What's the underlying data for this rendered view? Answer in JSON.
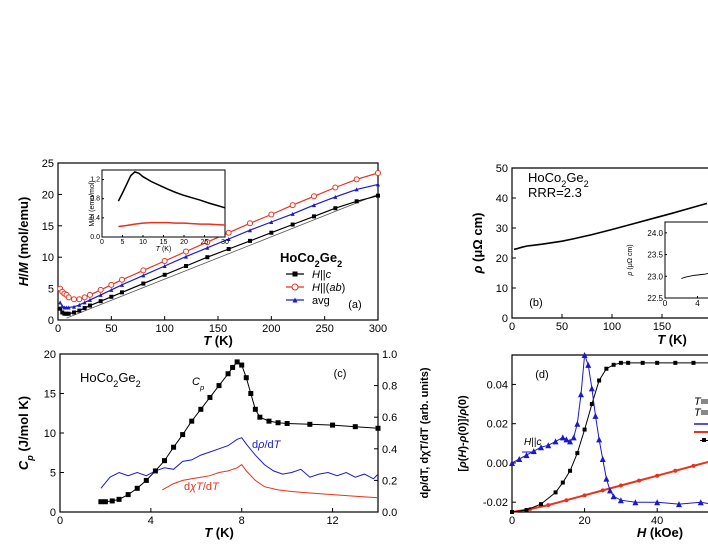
{
  "chart_data": [
    {
      "panel": "(a)",
      "type": "line",
      "compound": "HoCo2Ge2",
      "xlabel": "T (K)",
      "ylabel": "H/M (mol/emu)",
      "xlim": [
        0,
        300
      ],
      "ylim": [
        0,
        25
      ],
      "xticks": [
        "0",
        "50",
        "100",
        "150",
        "200",
        "250",
        "300"
      ],
      "yticks": [
        "0",
        "5",
        "10",
        "15",
        "20",
        "25"
      ],
      "legend_position": "lower-right",
      "series": [
        {
          "name": "H||c",
          "color": "#000000",
          "marker": "square-filled",
          "x": [
            2,
            4,
            6,
            8,
            10,
            15,
            20,
            25,
            30,
            40,
            50,
            60,
            80,
            100,
            120,
            140,
            160,
            180,
            200,
            220,
            240,
            260,
            280,
            300
          ],
          "y": [
            1.8,
            1.2,
            1.0,
            1.0,
            1.0,
            1.2,
            1.5,
            1.9,
            2.3,
            3.0,
            3.7,
            4.4,
            5.8,
            7.2,
            8.6,
            10.0,
            11.3,
            12.6,
            13.9,
            15.2,
            16.5,
            17.8,
            18.9,
            19.8
          ]
        },
        {
          "name": "H||(ab)",
          "color": "#e8321e",
          "marker": "circle-open",
          "x": [
            2,
            4,
            6,
            8,
            10,
            15,
            20,
            25,
            30,
            40,
            50,
            60,
            80,
            100,
            120,
            140,
            160,
            180,
            200,
            220,
            240,
            260,
            280,
            300
          ],
          "y": [
            5.0,
            4.5,
            4.2,
            4.0,
            3.6,
            3.3,
            3.3,
            3.6,
            4.0,
            4.8,
            5.6,
            6.4,
            7.9,
            9.4,
            10.9,
            12.4,
            13.9,
            15.4,
            16.8,
            18.3,
            19.7,
            21.1,
            22.4,
            23.4
          ]
        },
        {
          "name": "avg",
          "color": "#1a1acc",
          "marker": "triangle",
          "x": [
            2,
            4,
            6,
            8,
            10,
            15,
            20,
            25,
            30,
            40,
            50,
            60,
            80,
            100,
            120,
            140,
            160,
            180,
            200,
            220,
            240,
            260,
            280,
            300
          ],
          "y": [
            2.8,
            2.2,
            2.0,
            2.0,
            2.0,
            2.1,
            2.4,
            2.8,
            3.2,
            4.0,
            4.8,
            5.6,
            7.1,
            8.6,
            10.1,
            11.5,
            12.9,
            14.3,
            15.6,
            16.9,
            18.3,
            19.6,
            20.8,
            21.6
          ]
        }
      ],
      "fit_line": {
        "color": "#555555",
        "x": [
          8,
          300
        ],
        "y": [
          0.3,
          20.0
        ]
      },
      "inset": {
        "ylabel": "M/H (emu/mol)",
        "xlabel": "T (K)",
        "xlim": [
          0,
          30
        ],
        "ylim": [
          0,
          1.4
        ],
        "xticks": [
          "0",
          "5",
          "10",
          "15",
          "20",
          "25",
          "30"
        ],
        "yticks": [
          "0.0",
          "0.4",
          "0.8",
          "1.2"
        ],
        "series": [
          {
            "color": "#000000",
            "x": [
              4,
              5,
              6,
              7,
              8,
              9,
              10,
              12,
              14,
              16,
              18,
              20,
              22,
              24,
              26,
              28,
              30
            ],
            "y": [
              0.75,
              0.92,
              1.1,
              1.28,
              1.36,
              1.33,
              1.26,
              1.16,
              1.08,
              1.0,
              0.93,
              0.87,
              0.82,
              0.77,
              0.71,
              0.66,
              0.61
            ]
          },
          {
            "color": "#e8321e",
            "x": [
              4,
              6,
              8,
              10,
              12,
              14,
              16,
              18,
              20,
              22,
              24,
              26,
              28,
              30
            ],
            "y": [
              0.22,
              0.24,
              0.27,
              0.29,
              0.3,
              0.3,
              0.3,
              0.29,
              0.29,
              0.28,
              0.27,
              0.27,
              0.26,
              0.25
            ]
          }
        ]
      }
    },
    {
      "panel": "(b)",
      "type": "line",
      "compound": "HoCo2Ge2",
      "annotation": "RRR=2.3",
      "xlabel": "T (K)",
      "ylabel": "ρ (μΩ cm)",
      "xlim": [
        0,
        200
      ],
      "ylim": [
        0,
        50
      ],
      "xticks": [
        "0",
        "50",
        "100",
        "150"
      ],
      "yticks": [
        "0",
        "10",
        "20",
        "30",
        "40",
        "50"
      ],
      "series": [
        {
          "color": "#000000",
          "x": [
            2,
            5,
            10,
            15,
            20,
            30,
            40,
            50,
            60,
            80,
            100,
            120,
            140,
            160,
            180,
            195
          ],
          "y": [
            22.9,
            23.1,
            23.6,
            24.0,
            24.2,
            24.6,
            25.1,
            25.6,
            26.3,
            27.8,
            29.5,
            31.3,
            33.1,
            34.9,
            36.8,
            38.2
          ]
        }
      ],
      "inset": {
        "ylabel": "ρ (μΩ cm)",
        "xlim": [
          0,
          8
        ],
        "ylim": [
          22.5,
          24.25
        ],
        "xticks": [
          "0",
          "4"
        ],
        "yticks": [
          "22.5",
          "23.0",
          "23.5",
          "24.0"
        ],
        "series": [
          {
            "color": "#000000",
            "x": [
              2,
              2.5,
              3,
              3.5,
              4,
              4.5,
              5,
              5.5,
              6,
              6.5,
              7,
              7.5,
              8
            ],
            "y": [
              22.95,
              22.98,
              23.0,
              23.02,
              23.03,
              23.04,
              23.05,
              23.08,
              23.12,
              23.18,
              23.24,
              23.32,
              23.42
            ]
          }
        ]
      }
    },
    {
      "panel": "(c)",
      "type": "line",
      "compound": "HoCo2Ge2",
      "xlabel": "T (K)",
      "ylabel": "Cp (J/mol K)",
      "ylabel_right": "dρ/dT, dχT/dT (arb. units)",
      "xlim": [
        0,
        14
      ],
      "ylim": [
        0,
        20
      ],
      "ylim_right": [
        0.0,
        1.0
      ],
      "xticks": [
        "0",
        "4",
        "8",
        "12"
      ],
      "yticks": [
        "0",
        "5",
        "10",
        "15",
        "20"
      ],
      "yticks_right": [
        "0.0",
        "0.2",
        "0.4",
        "0.6",
        "0.8",
        "1.0"
      ],
      "series": [
        {
          "name": "Cp",
          "color": "#000000",
          "marker": "square-filled",
          "x": [
            1.8,
            2.0,
            2.3,
            2.6,
            3.0,
            3.4,
            3.8,
            4.2,
            4.6,
            5.0,
            5.4,
            5.8,
            6.2,
            6.6,
            7.0,
            7.4,
            7.6,
            7.8,
            8.0,
            8.2,
            8.4,
            8.6,
            8.8,
            9.2,
            9.6,
            10.0,
            11.0,
            12.0,
            13.0,
            14.0
          ],
          "y": [
            1.3,
            1.3,
            1.4,
            1.6,
            2.2,
            3.0,
            4.0,
            5.2,
            6.5,
            8.2,
            9.8,
            11.5,
            13.0,
            14.5,
            16.0,
            17.5,
            18.3,
            19.0,
            18.6,
            17.0,
            15.0,
            13.0,
            12.0,
            11.5,
            11.3,
            11.2,
            11.1,
            11.0,
            10.8,
            10.6
          ]
        },
        {
          "name": "dρ/dT",
          "color": "#1a1acc",
          "axis": "right",
          "x": [
            1.8,
            2.2,
            2.6,
            3.0,
            3.4,
            3.8,
            4.2,
            4.6,
            5.0,
            5.4,
            5.8,
            6.2,
            6.6,
            7.0,
            7.4,
            7.8,
            8.0,
            8.2,
            8.6,
            9.0,
            9.4,
            9.8,
            10.2,
            10.6,
            11.0,
            11.4,
            11.8,
            12.2,
            12.6,
            13.0,
            13.4,
            13.8,
            14.0
          ],
          "y": [
            0.15,
            0.22,
            0.25,
            0.23,
            0.25,
            0.23,
            0.26,
            0.28,
            0.27,
            0.32,
            0.33,
            0.36,
            0.38,
            0.4,
            0.42,
            0.46,
            0.47,
            0.43,
            0.36,
            0.3,
            0.26,
            0.24,
            0.25,
            0.27,
            0.22,
            0.24,
            0.25,
            0.23,
            0.25,
            0.22,
            0.24,
            0.21,
            0.24
          ]
        },
        {
          "name": "dχT/dT",
          "color": "#e8321e",
          "axis": "right",
          "x": [
            4.5,
            5.0,
            5.4,
            5.8,
            6.2,
            6.6,
            7.0,
            7.4,
            7.8,
            8.0,
            8.2,
            8.6,
            9.0,
            9.6,
            10.2,
            11.0,
            12.0,
            13.0,
            14.0
          ],
          "y": [
            0.14,
            0.18,
            0.2,
            0.21,
            0.22,
            0.23,
            0.25,
            0.26,
            0.28,
            0.3,
            0.26,
            0.2,
            0.16,
            0.14,
            0.13,
            0.12,
            0.11,
            0.1,
            0.09
          ]
        }
      ]
    },
    {
      "panel": "(d)",
      "type": "line",
      "xlabel": "H (kOe)",
      "ylabel": "[ρ(H)-ρ(0)]/ρ(0)",
      "xlim": [
        0,
        55
      ],
      "ylim": [
        -0.025,
        0.055
      ],
      "xticks": [
        "0",
        "20",
        "40"
      ],
      "yticks": [
        "-0.02",
        "0.00",
        "0.02",
        "0.04"
      ],
      "annotation": "H||c",
      "legend_labels": [
        "T",
        "T"
      ],
      "series": [
        {
          "color": "#1a1acc",
          "marker": "triangle",
          "x": [
            0,
            2,
            4,
            6,
            8,
            10,
            12,
            14,
            15,
            16,
            17,
            18,
            19,
            20,
            21,
            22,
            23,
            24,
            25,
            26,
            27,
            28,
            30,
            34,
            40,
            46,
            52,
            55
          ],
          "y": [
            0.0,
            0.002,
            0.004,
            0.006,
            0.008,
            0.009,
            0.011,
            0.013,
            0.012,
            0.011,
            0.013,
            0.02,
            0.035,
            0.055,
            0.05,
            0.038,
            0.024,
            0.012,
            0.002,
            -0.008,
            -0.014,
            -0.017,
            -0.019,
            -0.02,
            -0.02,
            -0.021,
            -0.02,
            -0.021
          ]
        },
        {
          "color": "#000000",
          "marker": "square-filled",
          "x": [
            0,
            4,
            8,
            12,
            14,
            16,
            18,
            20,
            22,
            24,
            26,
            28,
            30,
            32,
            36,
            40,
            45,
            50,
            55
          ],
          "y": [
            -0.025,
            -0.024,
            -0.021,
            -0.015,
            -0.01,
            -0.004,
            0.005,
            0.017,
            0.03,
            0.042,
            0.048,
            0.05,
            0.051,
            0.051,
            0.051,
            0.051,
            0.051,
            0.051,
            0.051
          ]
        },
        {
          "color": "#e8321e",
          "marker": "circle-filled",
          "x": [
            0,
            5,
            10,
            15,
            20,
            25,
            30,
            35,
            40,
            45,
            50,
            55
          ],
          "y": [
            -0.025,
            -0.0235,
            -0.0215,
            -0.019,
            -0.0165,
            -0.014,
            -0.0115,
            -0.009,
            -0.0065,
            -0.004,
            -0.0015,
            0.001
          ]
        }
      ]
    }
  ]
}
